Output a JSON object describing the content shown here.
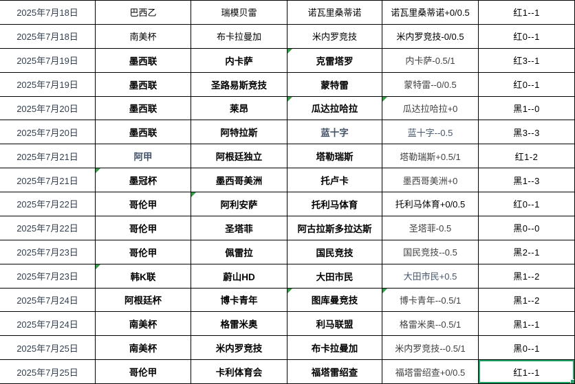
{
  "app": {
    "description_label": "match-record-spreadsheet",
    "colors": {
      "grid_line": "#000000",
      "date_text": "#333F4F",
      "slate_blue_text": "#44546A",
      "handicap_gray_text": "#404040",
      "selection_green": "#21A366",
      "comment_triangle_green": "#2F9E44",
      "background": "#FFFFFF"
    }
  },
  "table": {
    "columns": [
      "date",
      "league",
      "home",
      "away",
      "handicap",
      "result"
    ],
    "rows": [
      {
        "date": "2025年7月18日",
        "league": "巴西乙",
        "home": "瑞模贝雷",
        "away": "诺瓦里桑蒂诺",
        "handicap": "诺瓦里桑蒂诺+0/0.5",
        "result": "红1--1",
        "bold": false,
        "triangles": [],
        "cell_colors": {
          "handicap": "#000000"
        }
      },
      {
        "date": "2025年7月18日",
        "league": "南美杯",
        "home": "布卡拉曼加",
        "away": "米内罗竞技",
        "handicap": "米内罗竞技-0/0.5",
        "result": "红0--1",
        "bold": false,
        "triangles": [],
        "cell_colors": {
          "handicap": "#000000"
        }
      },
      {
        "date": "2025年7月19日",
        "league": "墨西联",
        "home": "内卡萨",
        "away": "克雷塔罗",
        "handicap": "内卡萨-0.5/1",
        "result": "红3--1",
        "bold": true,
        "triangles": [
          "away"
        ],
        "cell_colors": {
          "handicap": "#404040"
        }
      },
      {
        "date": "2025年7月19日",
        "league": "墨西联",
        "home": "圣路易斯竞技",
        "away": "蒙特雷",
        "handicap": "蒙特雷--0/0.5",
        "result": "红0--1",
        "bold": true,
        "triangles": [],
        "cell_colors": {
          "handicap": "#404040"
        }
      },
      {
        "date": "2025年7月20日",
        "league": "墨西联",
        "home": "莱昂",
        "away": "瓜达拉哈拉",
        "handicap": "瓜达拉哈拉+0",
        "result": "黑1--0",
        "bold": true,
        "triangles": [
          "away",
          "handicap"
        ],
        "cell_colors": {
          "handicap": "#404040"
        }
      },
      {
        "date": "2025年7月20日",
        "league": "墨西联",
        "home": "阿特拉斯",
        "away": "蓝十字",
        "handicap": "蓝十字--0.5",
        "result": "黑3--3",
        "bold": true,
        "triangles": [],
        "cell_colors": {
          "away": "#44546A",
          "handicap": "#44546A"
        }
      },
      {
        "date": "2025年7月21日",
        "league": "阿甲",
        "home": "阿根廷独立",
        "away": "塔勒瑞斯",
        "handicap": "塔勒瑞斯+0.5/1",
        "result": "红1-2",
        "bold": true,
        "triangles": [],
        "cell_colors": {
          "league": "#44546A",
          "handicap": "#404040"
        }
      },
      {
        "date": "2025年7月21日",
        "league": "墨冠杯",
        "home": "墨西哥美洲",
        "away": "托卢卡",
        "handicap": "墨西哥美洲+0",
        "result": "黑1--3",
        "bold": true,
        "triangles": [
          "league"
        ],
        "cell_colors": {
          "handicap": "#404040"
        }
      },
      {
        "date": "2025年7月22日",
        "league": "哥伦甲",
        "home": "阿利安萨",
        "away": "托利马体育",
        "handicap": "托利马体育+0/0.5",
        "result": "红0--1",
        "bold": true,
        "triangles": [
          "home"
        ],
        "cell_colors": {
          "handicap": "#000000"
        }
      },
      {
        "date": "2025年7月22日",
        "league": "哥伦甲",
        "home": "圣塔菲",
        "away": "阿古拉斯多拉达斯",
        "handicap": "圣塔菲-0.5",
        "result": "黑0--0",
        "bold": true,
        "triangles": [],
        "cell_colors": {
          "handicap": "#404040"
        }
      },
      {
        "date": "2025年7月23日",
        "league": "哥伦甲",
        "home": "佩雷拉",
        "away": "国民竞技",
        "handicap": "国民竞技--0.5",
        "result": "黑2--1",
        "bold": true,
        "triangles": [],
        "cell_colors": {
          "handicap": "#404040"
        }
      },
      {
        "date": "2025年7月23日",
        "league": "韩K联",
        "home": "蔚山HD",
        "away": "大田市民",
        "handicap": "大田市民+0.5",
        "result": "黑1--2",
        "bold": true,
        "triangles": [
          "league"
        ],
        "cell_colors": {
          "handicap": "#44546A"
        }
      },
      {
        "date": "2025年7月24日",
        "league": "阿根廷杯",
        "home": "博卡青年",
        "away": "图库曼竞技",
        "handicap": "博卡青年--0.5/1",
        "result": "黑1--2",
        "bold": true,
        "triangles": [
          "away",
          "handicap"
        ],
        "cell_colors": {
          "handicap": "#404040"
        }
      },
      {
        "date": "2025年7月24日",
        "league": "南美杯",
        "home": "格雷米奥",
        "away": "利马联盟",
        "handicap": "格雷米奥--0.5/1",
        "result": "黑1--1",
        "bold": true,
        "triangles": [],
        "cell_colors": {
          "handicap": "#404040"
        }
      },
      {
        "date": "2025年7月25日",
        "league": "南美杯",
        "home": "米内罗竞技",
        "away": "布卡拉曼加",
        "handicap": "米内罗竞技--0.5/1",
        "result": "黑0--1",
        "bold": true,
        "triangles": [],
        "cell_colors": {
          "handicap": "#404040"
        }
      },
      {
        "date": "2025年7月25日",
        "league": "哥伦甲",
        "home": "卡利体育会",
        "away": "福塔雷绍查",
        "handicap": "福塔雷绍查+0/0.5",
        "result": "红1--1",
        "bold": true,
        "triangles": [],
        "cell_colors": {
          "handicap": "#404040"
        },
        "selected": "result"
      }
    ]
  }
}
